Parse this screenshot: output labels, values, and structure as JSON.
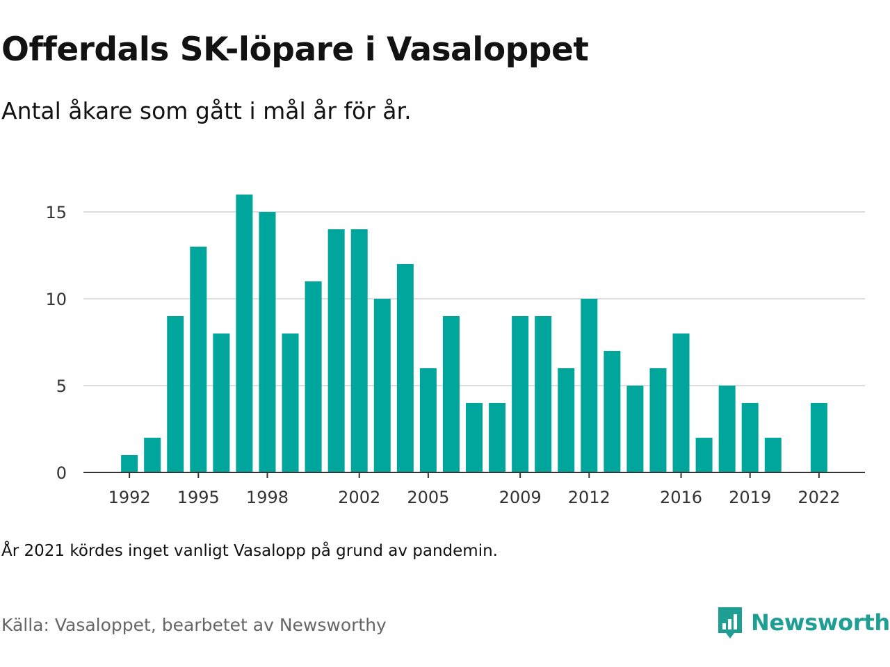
{
  "title": "Offerdals SK-löpare i Vasaloppet",
  "subtitle": "Antal åkare som gått i mål år för år.",
  "note": "År 2021 kördes inget vanligt Vasalopp på grund av pandemin.",
  "source": "Källa: Vasaloppet, bearbetet av Newsworthy",
  "logo_text": "Newsworthy",
  "colors": {
    "bar": "#00a59b",
    "grid": "#dddddd",
    "axis": "#333333",
    "text": "#333333",
    "brand": "#1f9e93"
  },
  "chart_data": {
    "type": "bar",
    "x": [
      1992,
      1993,
      1994,
      1995,
      1996,
      1997,
      1998,
      1999,
      2000,
      2001,
      2002,
      2003,
      2004,
      2005,
      2006,
      2007,
      2008,
      2009,
      2010,
      2011,
      2012,
      2013,
      2014,
      2015,
      2016,
      2017,
      2018,
      2019,
      2020,
      2021,
      2022
    ],
    "values": [
      1,
      2,
      9,
      13,
      8,
      16,
      15,
      8,
      11,
      14,
      14,
      10,
      12,
      6,
      9,
      4,
      4,
      9,
      9,
      6,
      10,
      7,
      5,
      6,
      8,
      2,
      5,
      4,
      2,
      0,
      4
    ],
    "x_ticks": [
      1992,
      1995,
      1998,
      2002,
      2005,
      2009,
      2012,
      2016,
      2019,
      2022
    ],
    "y_ticks": [
      0,
      5,
      10,
      15
    ],
    "ylim": [
      0,
      16
    ],
    "xlim": [
      1990,
      2024
    ],
    "grid": true,
    "xlabel": "",
    "ylabel": ""
  }
}
